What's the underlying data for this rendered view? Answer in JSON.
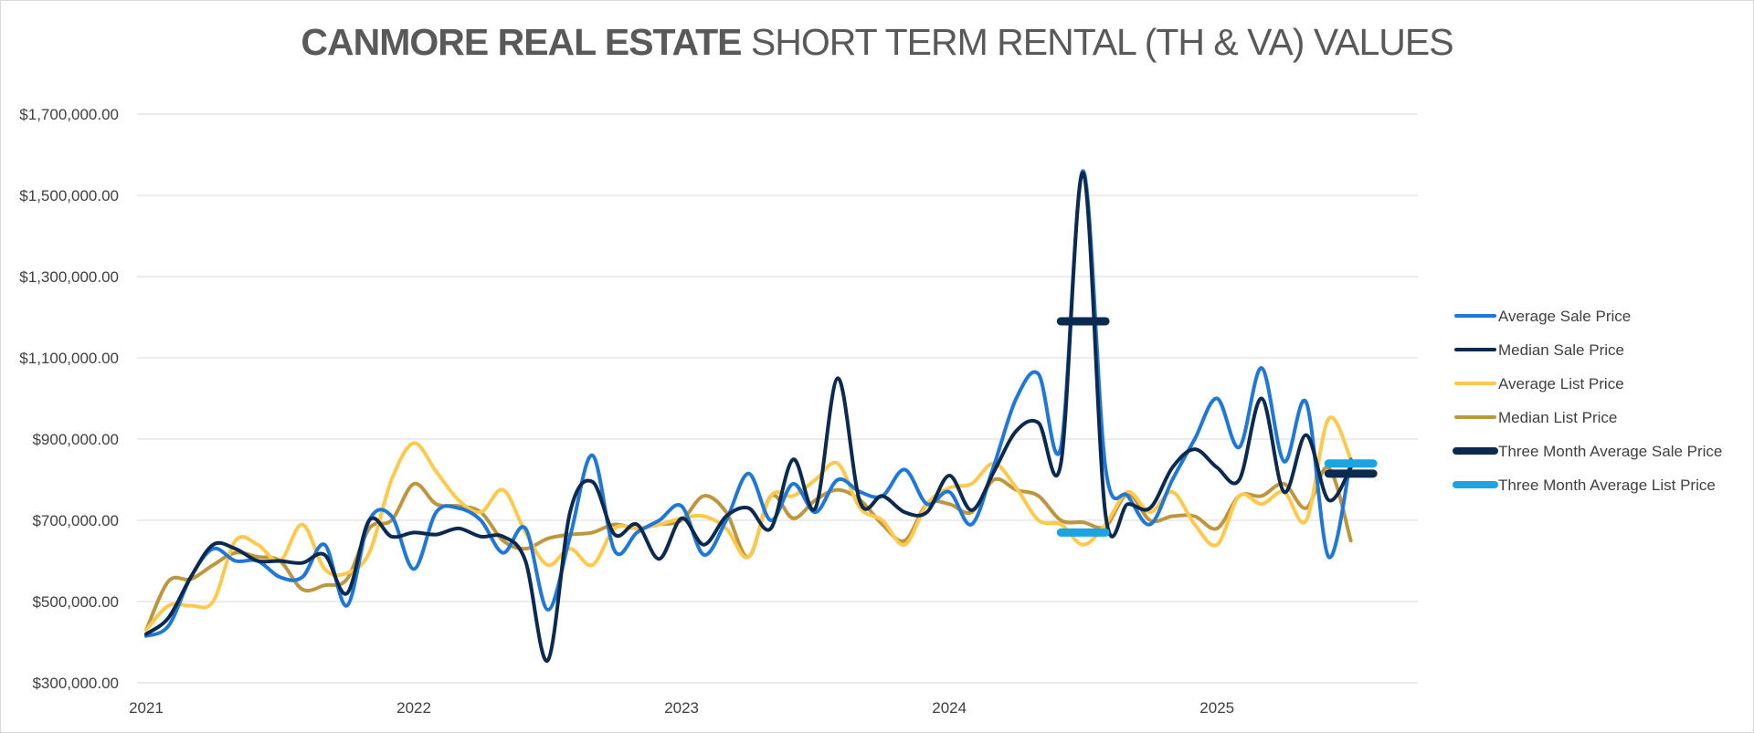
{
  "title": {
    "bold": "CANMORE REAL ESTATE",
    "regular": "SHORT TERM RENTAL (TH & VA) VALUES"
  },
  "chart_data": {
    "type": "line",
    "x_unit": "month",
    "x_start": "2021-01",
    "ylim": [
      300000,
      1700000
    ],
    "y_ticks": [
      300000,
      500000,
      700000,
      900000,
      1100000,
      1300000,
      1500000,
      1700000
    ],
    "y_tick_labels": [
      "$300,000.00",
      "$500,000.00",
      "$700,000.00",
      "$900,000.00",
      "$1,100,000.00",
      "$1,300,000.00",
      "$1,500,000.00",
      "$1,700,000.00"
    ],
    "x_tick_labels": [
      "2021",
      "2022",
      "2023",
      "2024",
      "2025"
    ],
    "grid": true,
    "legend_position": "right",
    "series": [
      {
        "name": "Average Sale Price",
        "color": "#1f78d9",
        "start": "2021-01",
        "values": [
          415000,
          440000,
          560000,
          630000,
          600000,
          600000,
          560000,
          560000,
          640000,
          490000,
          700000,
          710000,
          580000,
          720000,
          730000,
          700000,
          620000,
          680000,
          480000,
          660000,
          860000,
          625000,
          670000,
          700000,
          735000,
          615000,
          700000,
          815000,
          700000,
          790000,
          720000,
          800000,
          770000,
          760000,
          825000,
          740000,
          770000,
          690000,
          835000,
          1000000,
          1060000,
          880000,
          1560000,
          830000,
          760000,
          690000,
          800000,
          900000,
          1000000,
          880000,
          1075000,
          845000,
          990000,
          610000,
          850000
        ]
      },
      {
        "name": "Median Sale Price",
        "color": "#0c2a50",
        "start": "2021-01",
        "values": [
          420000,
          460000,
          560000,
          640000,
          630000,
          600000,
          600000,
          595000,
          615000,
          520000,
          700000,
          660000,
          670000,
          665000,
          680000,
          660000,
          660000,
          600000,
          355000,
          720000,
          795000,
          665000,
          690000,
          605000,
          705000,
          640000,
          710000,
          730000,
          680000,
          850000,
          730000,
          1050000,
          745000,
          760000,
          720000,
          720000,
          810000,
          725000,
          820000,
          920000,
          940000,
          840000,
          1555000,
          715000,
          740000,
          730000,
          830000,
          875000,
          830000,
          800000,
          1000000,
          770000,
          910000,
          750000,
          830000
        ]
      },
      {
        "name": "Average List Price",
        "color": "#ffc94d",
        "start": "2021-01",
        "values": [
          430000,
          490000,
          490000,
          500000,
          650000,
          640000,
          600000,
          690000,
          580000,
          570000,
          620000,
          800000,
          890000,
          820000,
          750000,
          720000,
          775000,
          670000,
          590000,
          630000,
          590000,
          680000,
          680000,
          690000,
          705000,
          710000,
          680000,
          610000,
          760000,
          760000,
          800000,
          840000,
          730000,
          700000,
          640000,
          740000,
          780000,
          790000,
          840000,
          780000,
          700000,
          690000,
          640000,
          690000,
          770000,
          720000,
          770000,
          690000,
          640000,
          760000,
          740000,
          770000,
          700000,
          950000,
          850000
        ]
      },
      {
        "name": "Median List Price",
        "color": "#bf9640",
        "start": "2021-01",
        "values": [
          430000,
          550000,
          555000,
          590000,
          620000,
          610000,
          600000,
          530000,
          540000,
          555000,
          680000,
          700000,
          790000,
          740000,
          735000,
          720000,
          650000,
          630000,
          655000,
          665000,
          670000,
          690000,
          680000,
          690000,
          700000,
          760000,
          720000,
          610000,
          760000,
          705000,
          750000,
          775000,
          750000,
          690000,
          650000,
          740000,
          740000,
          720000,
          800000,
          775000,
          760000,
          700000,
          695000,
          685000,
          765000,
          700000,
          710000,
          710000,
          680000,
          760000,
          760000,
          790000,
          730000,
          830000,
          650000
        ]
      },
      {
        "name": "Three Month Average Sale Price",
        "color": "#0c2a50",
        "segments": [
          {
            "start": "2024-06",
            "end": "2024-08",
            "value": 1190000
          },
          {
            "start": "2025-06",
            "end": "2025-08",
            "value": 815000
          }
        ]
      },
      {
        "name": "Three Month Average List Price",
        "color": "#1aa4e0",
        "segments": [
          {
            "start": "2024-06",
            "end": "2024-08",
            "value": 670000
          },
          {
            "start": "2025-06",
            "end": "2025-08",
            "value": 840000
          }
        ]
      }
    ]
  }
}
